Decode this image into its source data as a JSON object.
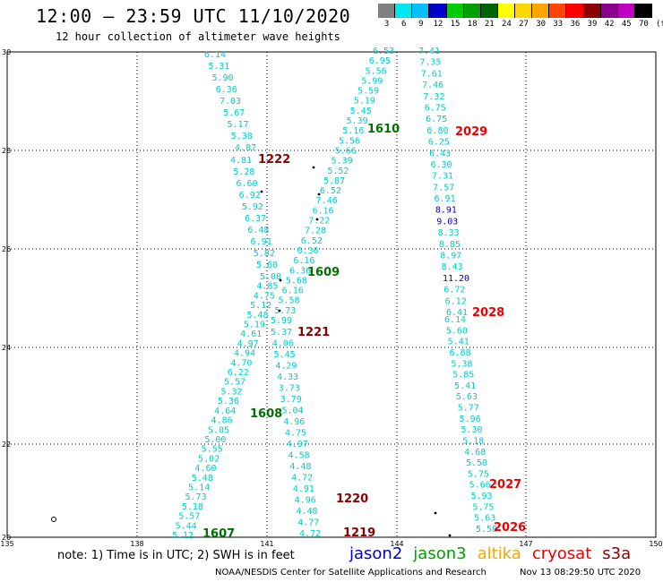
{
  "header": {
    "title": "12:00 – 23:59 UTC 11/10/2020",
    "subtitle": "12 hour collection of altimeter wave heights"
  },
  "legend": {
    "unit": "(ft)",
    "bins": [
      {
        "label": "3",
        "color": "#808080"
      },
      {
        "label": "6",
        "color": "#00e5ee"
      },
      {
        "label": "9",
        "color": "#00bfff"
      },
      {
        "label": "12",
        "color": "#0000cd"
      },
      {
        "label": "15",
        "color": "#00cd00"
      },
      {
        "label": "18",
        "color": "#00a000"
      },
      {
        "label": "21",
        "color": "#006400"
      },
      {
        "label": "24",
        "color": "#ffff00"
      },
      {
        "label": "27",
        "color": "#ffd700"
      },
      {
        "label": "30",
        "color": "#ffa500"
      },
      {
        "label": "33",
        "color": "#ff4500"
      },
      {
        "label": "36",
        "color": "#ff0000"
      },
      {
        "label": "39",
        "color": "#8b0000"
      },
      {
        "label": "42",
        "color": "#8b008b"
      },
      {
        "label": "45",
        "color": "#c000c0"
      },
      {
        "label": "70",
        "color": "#000000"
      }
    ]
  },
  "map": {
    "lon_ticks": [
      "135",
      "138",
      "141",
      "144",
      "147",
      "150"
    ],
    "lat_ticks": [
      "30",
      "28",
      "26",
      "24",
      "22",
      "20"
    ],
    "tracks": [
      {
        "id": "t1",
        "color": "#00cdcd",
        "values": [
          "6.14",
          "5.31",
          "5.90",
          "6.36",
          "7.03",
          "5.67",
          "5.17",
          "5.38",
          "4.87",
          "4.81",
          "5.28",
          "6.60",
          "6.92",
          "5.92",
          "6.37",
          "6.48",
          "6.91",
          "5.82",
          "5.60",
          "5.08",
          "4.85",
          "4.75",
          "5.12",
          "5.48",
          "5.19",
          "4.61",
          "4.97",
          "4.94",
          "4.70",
          "6.22",
          "5.57",
          "5.32",
          "5.36",
          "4.64",
          "4.86",
          "5.05",
          "5.00",
          "5.55",
          "5.02",
          "4.60",
          "5.48",
          "5.14",
          "5.73",
          "5.18",
          "5.57",
          "5.44",
          "5.12"
        ]
      },
      {
        "id": "t2",
        "color": "#00cdcd",
        "values": [
          "6.53",
          "6.95",
          "5.56",
          "5.99",
          "5.59",
          "5.19",
          "5.45",
          "5.39",
          "5.16",
          "5.56",
          "5.66",
          "5.39",
          "5.52",
          "5.87",
          "6.52",
          "7.46",
          "6.16",
          "7.22",
          "7.28",
          "6.52",
          "6.36",
          "6.16",
          "6.36",
          "5.68",
          "6.16",
          "5.58",
          "5.73",
          "5.99",
          "5.37",
          "4.06",
          "5.45",
          "4.29",
          "4.33",
          "3.73",
          "3.79",
          "5.04",
          "4.96",
          "4.75",
          "4.97",
          "4.58",
          "4.48",
          "4.72",
          "4.91",
          "4.96",
          "4.48",
          "4.77",
          "4.72"
        ]
      },
      {
        "id": "t3",
        "color": "#00cdcd",
        "values": [
          "7.41",
          "7.35",
          "7.61",
          "7.46",
          "7.32",
          "6.75",
          "6.75",
          "6.80",
          "6.25",
          "6.43",
          "6.30",
          "7.31",
          "7.57",
          "6.91",
          "8.91",
          "9.03",
          "8.33",
          "8.85",
          "8.97",
          "8.43",
          "11.20",
          "6.72",
          "6.12",
          "6.41",
          "6.14",
          "5.60",
          "5.41",
          "6.88",
          "5.38",
          "5.85",
          "5.41",
          "5.63",
          "5.77",
          "5.96",
          "5.30",
          "5.18",
          "4.68",
          "5.50",
          "5.75",
          "5.66",
          "5.93",
          "5.75",
          "5.63",
          "5.50"
        ],
        "special": {
          "14": "#0000cd",
          "15": "#0000cd",
          "20": "#0000cd"
        }
      }
    ],
    "pass_labels": [
      {
        "text": "1610",
        "color": "#007000"
      },
      {
        "text": "1609",
        "color": "#007000"
      },
      {
        "text": "1608",
        "color": "#007000"
      },
      {
        "text": "1607",
        "color": "#007000"
      },
      {
        "text": "1222",
        "color": "#8b0000"
      },
      {
        "text": "1221",
        "color": "#8b0000"
      },
      {
        "text": "1220",
        "color": "#8b0000"
      },
      {
        "text": "1219",
        "color": "#8b0000"
      },
      {
        "text": "2029",
        "color": "#ee0000"
      },
      {
        "text": "2028",
        "color": "#ee0000"
      },
      {
        "text": "2027",
        "color": "#ee0000"
      },
      {
        "text": "2026",
        "color": "#ee0000"
      }
    ]
  },
  "footer": {
    "notes": "note:  1) Time is in UTC;  2) SWH is in feet",
    "satellites": [
      {
        "name": "jason2",
        "color": "#0000cd"
      },
      {
        "name": "jason3",
        "color": "#00a000"
      },
      {
        "name": "altika",
        "color": "#ffa500"
      },
      {
        "name": "cryosat",
        "color": "#ee0000"
      },
      {
        "name": "s3a",
        "color": "#8b0000"
      }
    ],
    "credit": "NOAA/NESDIS Center for Satellite Applications and Research",
    "timestamp": "Nov 13 08:29:50 UTC 2020"
  }
}
